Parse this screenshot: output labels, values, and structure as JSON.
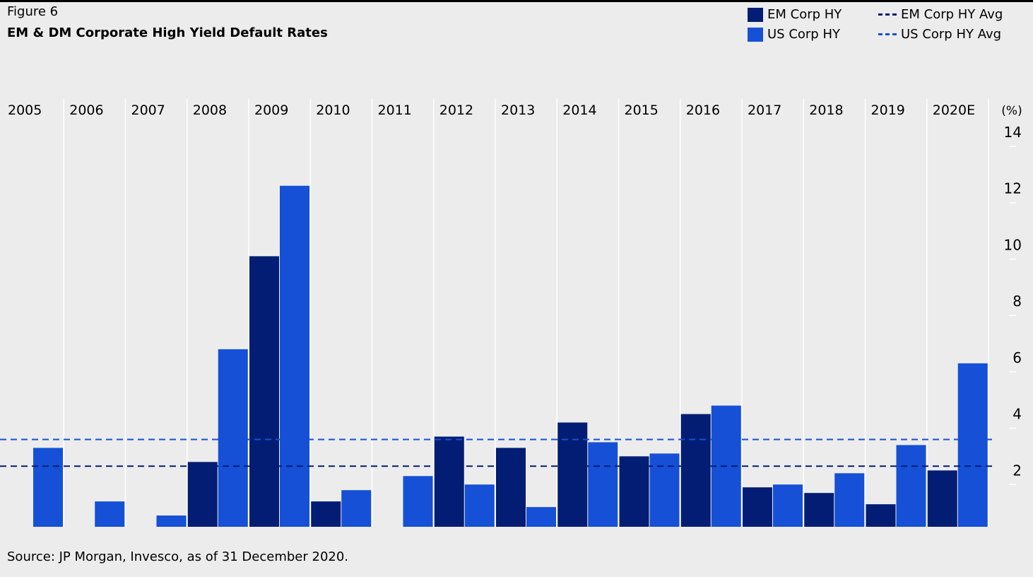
{
  "figure_label": "Figure 6",
  "title": "EM & DM Corporate High Yield Default Rates",
  "source": "Source: JP Morgan, Invesco, as of 31 December 2020.",
  "colors": {
    "background": "#ececec",
    "em_bar": "#021d73",
    "us_bar": "#1550d6",
    "em_avg": "#021d73",
    "us_avg": "#1550d6",
    "grid": "#ffffff"
  },
  "legend": {
    "em_corp_hy": "EM Corp HY",
    "us_corp_hy": "US Corp HY",
    "em_corp_hy_avg": "EM Corp HY Avg",
    "us_corp_hy_avg": "US Corp HY Avg"
  },
  "chart_data": {
    "type": "bar",
    "title": "EM & DM Corporate High Yield Default Rates",
    "xlabel": "",
    "ylabel": "(%)",
    "categories": [
      "2005",
      "2006",
      "2007",
      "2008",
      "2009",
      "2010",
      "2011",
      "2012",
      "2013",
      "2014",
      "2015",
      "2016",
      "2017",
      "2018",
      "2019",
      "2020E"
    ],
    "series": [
      {
        "name": "EM Corp HY",
        "values": [
          0,
          0,
          0,
          2.3,
          9.6,
          0.9,
          0,
          3.2,
          2.8,
          3.7,
          2.5,
          4.0,
          1.4,
          1.2,
          0.8,
          2.0
        ]
      },
      {
        "name": "US Corp HY",
        "values": [
          2.8,
          0.9,
          0.4,
          6.3,
          12.1,
          1.3,
          1.8,
          1.5,
          0.7,
          3.0,
          2.6,
          4.3,
          1.5,
          1.9,
          2.9,
          5.8
        ]
      }
    ],
    "averages": [
      {
        "name": "EM Corp HY Avg",
        "value": 2.15
      },
      {
        "name": "US Corp HY Avg",
        "value": 3.1
      }
    ],
    "ylim": [
      0,
      14
    ],
    "yticks": [
      2,
      4,
      6,
      8,
      10,
      12,
      14
    ],
    "y_axis_position": "right",
    "category_labels_position": "top",
    "grid": true,
    "legend_position": "top-right"
  }
}
